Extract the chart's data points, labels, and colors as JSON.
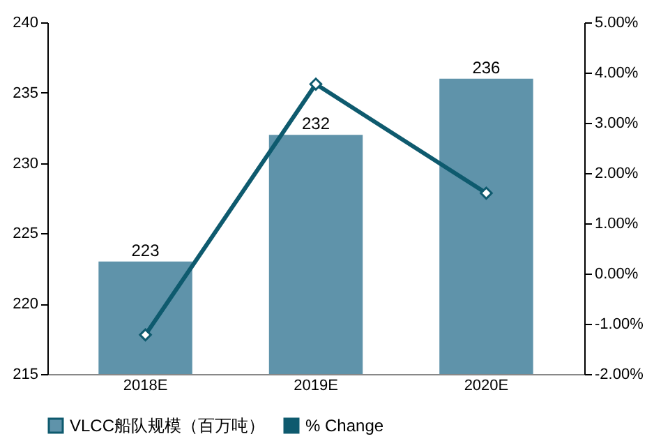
{
  "chart_data": {
    "type": "bar",
    "categories": [
      "2018E",
      "2019E",
      "2020E"
    ],
    "series": [
      {
        "name": "VLCC船队规模（百万吨）",
        "color": "#5f93aa",
        "values": [
          223,
          232,
          236
        ],
        "value_labels": [
          "223",
          "232",
          "236"
        ]
      },
      {
        "name": "% Change",
        "type": "line",
        "axis": "y2",
        "color": "#0e5a6e",
        "values": [
          -1.22,
          3.77,
          1.6
        ],
        "marker": "diamond"
      }
    ],
    "ylim": [
      215,
      240
    ],
    "yticks": [
      215,
      220,
      225,
      230,
      235,
      240
    ],
    "y2lim": [
      -2,
      5
    ],
    "y2ticks": [
      {
        "value": -2,
        "label": "-2.00%"
      },
      {
        "value": -1,
        "label": "-1.00%"
      },
      {
        "value": 0,
        "label": "0.00%"
      },
      {
        "value": 1,
        "label": "1.00%"
      },
      {
        "value": 2,
        "label": "2.00%"
      },
      {
        "value": 3,
        "label": "3.00%"
      },
      {
        "value": 4,
        "label": "4.00%"
      },
      {
        "value": 5,
        "label": "5.00%"
      }
    ],
    "grid": false,
    "legend": "bottom"
  }
}
